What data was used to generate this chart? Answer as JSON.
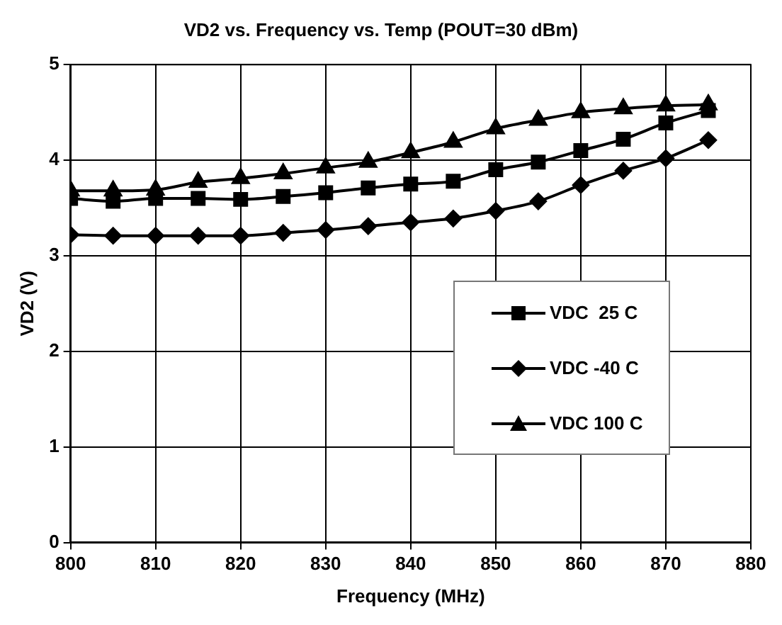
{
  "chart_data": {
    "type": "line",
    "title": "VD2 vs. Frequency vs. Temp (POUT=30 dBm)",
    "xlabel": "Frequency (MHz)",
    "ylabel": "VD2 (V)",
    "x": [
      800,
      805,
      810,
      815,
      820,
      825,
      830,
      835,
      840,
      845,
      850,
      855,
      860,
      865,
      870,
      875
    ],
    "series": [
      {
        "name": "VDC  25 C",
        "color": "#000000",
        "marker": "square",
        "values": [
          3.6,
          3.57,
          3.6,
          3.6,
          3.59,
          3.62,
          3.66,
          3.71,
          3.75,
          3.78,
          3.9,
          3.98,
          4.1,
          4.22,
          4.39,
          4.52
        ]
      },
      {
        "name": "VDC -40 C",
        "color": "#000000",
        "marker": "diamond",
        "values": [
          3.22,
          3.21,
          3.21,
          3.21,
          3.21,
          3.24,
          3.27,
          3.31,
          3.35,
          3.39,
          3.47,
          3.57,
          3.74,
          3.89,
          4.02,
          4.21
        ]
      },
      {
        "name": "VDC 100 C",
        "color": "#000000",
        "marker": "triangle",
        "values": [
          3.68,
          3.68,
          3.69,
          3.77,
          3.81,
          3.86,
          3.92,
          3.98,
          4.08,
          4.19,
          4.33,
          4.42,
          4.5,
          4.54,
          4.57,
          4.58
        ]
      }
    ],
    "xlim": [
      800,
      880
    ],
    "xticks": [
      800,
      810,
      820,
      830,
      840,
      850,
      860,
      870,
      880
    ],
    "ylim": [
      0,
      5
    ],
    "yticks": [
      0,
      1,
      2,
      3,
      4,
      5
    ],
    "grid": true,
    "legend": "bottom right",
    "line_style": "solid"
  }
}
